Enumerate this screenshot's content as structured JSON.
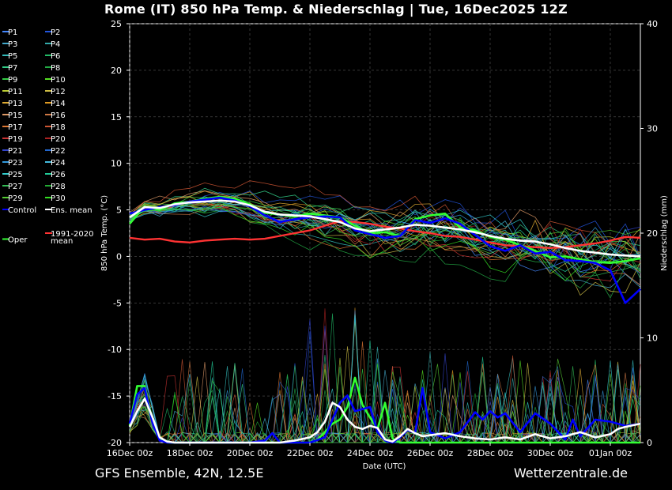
{
  "page": {
    "title": "Rome  (IT)  850 hPa Temp. & Niederschlag | Tue, 16Dec2025 12Z",
    "footer_left": "GFS Ensemble, 42N, 12.5E",
    "footer_right": "Wetterzentrale.de"
  },
  "chart_data": {
    "type": "line",
    "title": "Rome  (IT)  850 hPa Temp. & Niederschlag | Tue, 16Dec2025 12Z",
    "xlabel": "Date (UTC)",
    "ylabel": "850 hPa Temp. (°C)",
    "y2label": "Niederschlag (mm)",
    "ylim": [
      -20,
      25
    ],
    "y2lim": [
      0,
      40
    ],
    "yticks": [
      25,
      20,
      15,
      10,
      5,
      0,
      -5,
      -10,
      -15,
      -20
    ],
    "y2ticks": [
      40,
      30,
      20,
      10,
      0
    ],
    "xticks": [
      "16Dec 00z",
      "18Dec 00z",
      "20Dec 00z",
      "22Dec 00z",
      "24Dec 00z",
      "26Dec 00z",
      "28Dec 00z",
      "30Dec 00z",
      "01Jan 00z"
    ],
    "xlim_hours": [
      0,
      408
    ],
    "grid": true,
    "legend_placement": "left",
    "legend": [
      {
        "label": "P1",
        "color": "#4488ff"
      },
      {
        "label": "P2",
        "color": "#2255dd"
      },
      {
        "label": "P3",
        "color": "#44aacc"
      },
      {
        "label": "P4",
        "color": "#33aaaa"
      },
      {
        "label": "P5",
        "color": "#33bbbb"
      },
      {
        "label": "P6",
        "color": "#22bb66"
      },
      {
        "label": "P7",
        "color": "#33cc88"
      },
      {
        "label": "P8",
        "color": "#22aa44"
      },
      {
        "label": "P9",
        "color": "#33cc44"
      },
      {
        "label": "P10",
        "color": "#55dd22"
      },
      {
        "label": "P11",
        "color": "#bbcc33"
      },
      {
        "label": "P12",
        "color": "#ccbb44"
      },
      {
        "label": "P13",
        "color": "#ddaa33"
      },
      {
        "label": "P14",
        "color": "#dd9922"
      },
      {
        "label": "P15",
        "color": "#dd9966"
      },
      {
        "label": "P16",
        "color": "#cc7744"
      },
      {
        "label": "P17",
        "color": "#dd7733"
      },
      {
        "label": "P18",
        "color": "#cc5533"
      },
      {
        "label": "P19",
        "color": "#cc3333"
      },
      {
        "label": "P20",
        "color": "#aa2222"
      },
      {
        "label": "P21",
        "color": "#3344cc"
      },
      {
        "label": "P22",
        "color": "#2266cc"
      },
      {
        "label": "P23",
        "color": "#3399dd"
      },
      {
        "label": "P24",
        "color": "#44bbdd"
      },
      {
        "label": "P25",
        "color": "#33cccc"
      },
      {
        "label": "P26",
        "color": "#22cc99"
      },
      {
        "label": "P27",
        "color": "#33bb55"
      },
      {
        "label": "P28",
        "color": "#22aa33"
      },
      {
        "label": "P29",
        "color": "#55cc33"
      },
      {
        "label": "P30",
        "color": "#33dd22"
      },
      {
        "label": "Control",
        "color": "#0000ff"
      },
      {
        "label": "Ens. mean",
        "color": "#ffffff"
      },
      {
        "label": "1991-2020 mean",
        "color": "#ff3333"
      },
      {
        "label": "Oper",
        "color": "#33ff33"
      }
    ],
    "series": [
      {
        "name": "Ens. mean",
        "axis": "temp",
        "color": "#ffffff",
        "x": [
          0,
          12,
          24,
          36,
          48,
          60,
          72,
          84,
          96,
          108,
          120,
          132,
          144,
          156,
          168,
          180,
          192,
          204,
          216,
          228,
          240,
          252,
          264,
          276,
          288,
          300,
          312,
          324,
          336,
          348,
          360,
          372,
          384,
          396,
          408
        ],
        "values": [
          4.2,
          5.3,
          5.2,
          5.6,
          5.8,
          5.9,
          6.0,
          5.9,
          5.5,
          4.8,
          4.5,
          4.4,
          4.3,
          4.0,
          3.7,
          3.0,
          2.7,
          2.9,
          3.1,
          3.4,
          3.3,
          3.1,
          2.9,
          2.6,
          2.2,
          1.9,
          1.7,
          1.6,
          1.3,
          0.9,
          0.6,
          0.4,
          0.2,
          0.1,
          0.0
        ]
      },
      {
        "name": "Control",
        "axis": "temp",
        "color": "#0000ff",
        "x": [
          0,
          12,
          24,
          36,
          48,
          60,
          72,
          84,
          96,
          108,
          120,
          132,
          144,
          156,
          168,
          180,
          192,
          204,
          216,
          228,
          240,
          252,
          264,
          276,
          288,
          300,
          312,
          324,
          336,
          348,
          360,
          372,
          384,
          396,
          408
        ],
        "values": [
          4.6,
          5.0,
          5.3,
          5.5,
          5.9,
          6.1,
          6.3,
          6.0,
          5.4,
          4.4,
          3.7,
          4.0,
          4.2,
          4.3,
          4.2,
          2.8,
          2.4,
          2.0,
          2.2,
          3.9,
          3.6,
          4.1,
          3.5,
          2.3,
          1.1,
          0.6,
          1.2,
          0.3,
          0.5,
          -0.4,
          -0.5,
          -0.7,
          -1.5,
          -5.0,
          -3.5
        ]
      },
      {
        "name": "Oper",
        "axis": "temp",
        "color": "#33ff33",
        "x": [
          0,
          12,
          24,
          36,
          48,
          60,
          72,
          84,
          96,
          108,
          120,
          132,
          144,
          156,
          168,
          180,
          192,
          204,
          216,
          228,
          240,
          252,
          264,
          276,
          288,
          300,
          312,
          324,
          336,
          348,
          360,
          372,
          384,
          396,
          408
        ],
        "values": [
          3.5,
          5.4,
          5.0,
          5.7,
          5.9,
          6.2,
          6.4,
          6.2,
          5.6,
          4.7,
          4.5,
          4.3,
          4.6,
          4.4,
          4.2,
          3.3,
          2.5,
          2.6,
          2.2,
          4.0,
          4.4,
          4.6,
          3.1,
          2.8,
          2.1,
          1.8,
          1.2,
          0.6,
          -0.1,
          0.0,
          -0.3,
          -0.6,
          -0.7,
          -0.5,
          -0.2
        ]
      },
      {
        "name": "1991-2020 mean",
        "axis": "temp",
        "color": "#ff3333",
        "x": [
          0,
          12,
          24,
          36,
          48,
          60,
          72,
          84,
          96,
          108,
          120,
          132,
          144,
          156,
          168,
          180,
          192,
          204,
          216,
          228,
          240,
          252,
          264,
          276,
          288,
          300,
          312,
          324,
          336,
          348,
          360,
          372,
          384,
          396,
          408
        ],
        "values": [
          2.0,
          1.8,
          1.9,
          1.6,
          1.5,
          1.7,
          1.8,
          1.9,
          1.8,
          1.9,
          2.2,
          2.5,
          2.8,
          3.3,
          3.8,
          3.7,
          3.5,
          3.2,
          3.0,
          2.7,
          2.5,
          2.2,
          2.1,
          1.8,
          1.5,
          1.2,
          1.1,
          1.0,
          0.9,
          1.0,
          1.2,
          1.4,
          1.7,
          2.1,
          2.0
        ]
      },
      {
        "name": "Ens. mean precipitation",
        "axis": "precip",
        "color": "#ffffff",
        "x": [
          0,
          6,
          12,
          18,
          24,
          30,
          36,
          48,
          60,
          72,
          84,
          96,
          108,
          120,
          132,
          144,
          150,
          156,
          162,
          168,
          174,
          180,
          186,
          192,
          198,
          204,
          210,
          216,
          222,
          228,
          234,
          240,
          252,
          264,
          276,
          288,
          300,
          312,
          324,
          336,
          348,
          360,
          372,
          384,
          390,
          396,
          408
        ],
        "values": [
          1.5,
          3.0,
          4.2,
          2.5,
          0.5,
          0.1,
          0,
          0,
          0,
          0,
          0,
          0,
          0,
          0,
          0.2,
          0.5,
          1.0,
          2.0,
          3.8,
          3.4,
          2.2,
          1.5,
          1.3,
          1.6,
          1.4,
          0.3,
          0.1,
          0.6,
          1.3,
          0.9,
          0.6,
          0.7,
          0.9,
          0.6,
          0.4,
          0.3,
          0.5,
          0.3,
          0.8,
          0.4,
          0.6,
          1.0,
          0.5,
          0.8,
          1.3,
          1.5,
          1.8
        ]
      },
      {
        "name": "Control precipitation",
        "axis": "precip",
        "color": "#0000ff",
        "x": [
          0,
          6,
          12,
          18,
          24,
          30,
          36,
          48,
          60,
          72,
          84,
          96,
          108,
          114,
          120,
          132,
          144,
          156,
          162,
          168,
          174,
          180,
          186,
          192,
          198,
          204,
          210,
          216,
          222,
          228,
          234,
          240,
          252,
          264,
          276,
          282,
          288,
          294,
          300,
          312,
          324,
          336,
          348,
          354,
          360,
          372,
          384,
          396,
          408
        ],
        "values": [
          1.8,
          4.6,
          5.2,
          2.0,
          0.2,
          0,
          0,
          0,
          0,
          0,
          0,
          0,
          0.2,
          0.9,
          0,
          0,
          0,
          0.5,
          2.2,
          3.8,
          4.5,
          3.0,
          3.2,
          3.4,
          1.0,
          0.2,
          0,
          0.5,
          1.2,
          0.9,
          5.2,
          1.0,
          0.4,
          1.0,
          2.9,
          2.2,
          3.0,
          2.4,
          2.8,
          1.0,
          2.8,
          1.8,
          0.3,
          2.2,
          0.6,
          2.2,
          2.0,
          1.6,
          1.8
        ]
      },
      {
        "name": "Oper precipitation",
        "axis": "precip",
        "color": "#33ff33",
        "x": [
          0,
          6,
          12,
          18,
          24,
          30,
          36,
          48,
          60,
          72,
          84,
          96,
          108,
          120,
          132,
          144,
          150,
          156,
          162,
          168,
          174,
          180,
          186,
          192,
          198,
          204,
          210,
          216,
          228,
          240,
          252,
          264,
          276,
          288,
          300,
          312,
          324,
          336,
          348,
          360,
          372,
          384,
          396,
          408
        ],
        "values": [
          1.6,
          5.4,
          5.4,
          2.2,
          0.3,
          0,
          0,
          0,
          0,
          0,
          0,
          0,
          0,
          0,
          0,
          0,
          0.3,
          1.0,
          1.8,
          2.2,
          3.4,
          6.2,
          3.6,
          2.4,
          1.3,
          3.8,
          0.4,
          0,
          0,
          0,
          0,
          0,
          0,
          0,
          0,
          0,
          0,
          0,
          0,
          0,
          0,
          0,
          0,
          0
        ]
      }
    ]
  }
}
